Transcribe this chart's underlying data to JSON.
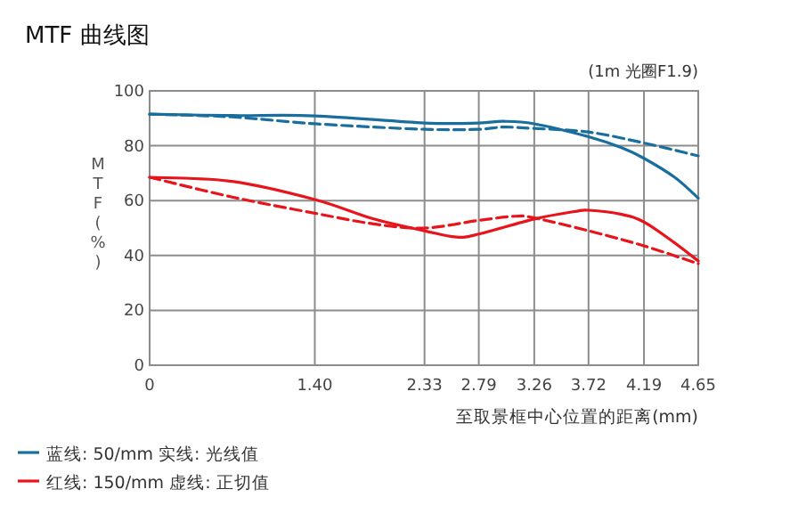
{
  "chart_data": {
    "type": "line",
    "title": "MTF 曲线图",
    "ylabel": "MTF(%)",
    "xlabel": "至取景框中心位置的距离(mm)",
    "annotations": [
      "(1m 光圈F1.9)"
    ],
    "xlim": [
      0,
      4.65
    ],
    "xticks": [
      0,
      {
        "value": 1.4,
        "label": "1.40"
      },
      2.33,
      2.79,
      3.26,
      3.72,
      4.19,
      4.65
    ],
    "ylim": [
      0,
      100
    ],
    "yticks": [
      0,
      20,
      40,
      60,
      80,
      100
    ],
    "grid": true,
    "legend": "bottom left",
    "series": [
      {
        "name": "蓝线: 50/mm  实线: 光线值",
        "color": "#1a6e9e",
        "line_style": "solid",
        "x": [
          0,
          0.7,
          1.4,
          2.33,
          2.79,
          3.0,
          3.26,
          3.72,
          4.0,
          4.19,
          4.45,
          4.65
        ],
        "values": [
          91.5,
          91,
          90.9,
          88.3,
          88.3,
          88.9,
          88,
          83.3,
          79.3,
          75.4,
          68.5,
          60.9
        ]
      },
      {
        "color": "#1a6e9e",
        "line_style": "dashed",
        "x": [
          0,
          0.7,
          1.4,
          2.33,
          2.79,
          3.0,
          3.26,
          3.72,
          4.19,
          4.65
        ],
        "values": [
          91.5,
          90.5,
          88,
          86,
          86,
          86.8,
          86.3,
          85,
          81,
          76.3
        ]
      },
      {
        "name": "红线: 150/mm  虚线: 正切值",
        "color": "#e8141c",
        "line_style": "solid",
        "x": [
          0,
          0.7,
          1.4,
          1.9,
          2.33,
          2.6,
          2.79,
          3.26,
          3.6,
          3.72,
          4.0,
          4.19,
          4.45,
          4.65
        ],
        "values": [
          68.5,
          67,
          60.4,
          53.3,
          49,
          46.7,
          47.8,
          53.3,
          56,
          56.5,
          55,
          52.2,
          44.6,
          38
        ]
      },
      {
        "color": "#e8141c",
        "line_style": "dashed",
        "x": [
          0,
          0.7,
          1.4,
          1.9,
          2.33,
          2.79,
          3.1,
          3.26,
          3.72,
          4.19,
          4.65
        ],
        "values": [
          68.5,
          61.3,
          55.4,
          51.5,
          50,
          52.8,
          54.3,
          53.7,
          49,
          43.5,
          37
        ]
      }
    ]
  }
}
